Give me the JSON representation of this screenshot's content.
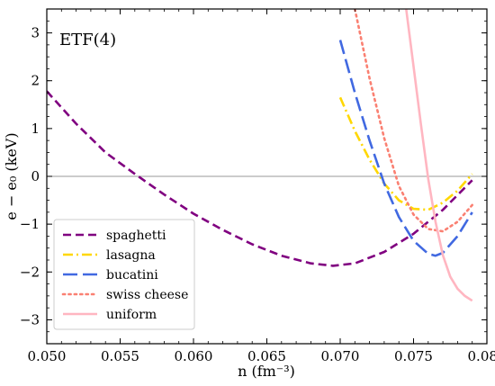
{
  "chart_data": {
    "type": "line",
    "title": "",
    "annotation": "ETF(4)",
    "xlabel": "n (fm⁻³)",
    "ylabel": "e − e₀ (keV)",
    "xlim": [
      0.05,
      0.08
    ],
    "ylim": [
      -3.5,
      3.5
    ],
    "xticks": [
      0.05,
      0.055,
      0.06,
      0.065,
      0.07,
      0.075,
      0.08
    ],
    "xtick_labels": [
      "0.050",
      "0.055",
      "0.060",
      "0.065",
      "0.070",
      "0.075",
      "0.080"
    ],
    "yticks": [
      -3,
      -2,
      -1,
      0,
      1,
      2,
      3
    ],
    "ytick_labels": [
      "−3",
      "−2",
      "−1",
      "0",
      "1",
      "2",
      "3"
    ],
    "reference_line_y": 0,
    "grid": false,
    "legend_position": "lower-left",
    "series": [
      {
        "name": "spaghetti",
        "color": "#800080",
        "style": "dashed",
        "x": [
          0.05,
          0.052,
          0.054,
          0.056,
          0.058,
          0.06,
          0.062,
          0.064,
          0.066,
          0.068,
          0.0695,
          0.071,
          0.073,
          0.075,
          0.077,
          0.079
        ],
        "y": [
          1.78,
          1.1,
          0.5,
          0.05,
          -0.38,
          -0.78,
          -1.12,
          -1.42,
          -1.66,
          -1.82,
          -1.87,
          -1.82,
          -1.58,
          -1.2,
          -0.7,
          -0.08
        ]
      },
      {
        "name": "lasagna",
        "color": "#FFD700",
        "style": "dashdot",
        "x": [
          0.07,
          0.071,
          0.072,
          0.073,
          0.074,
          0.075,
          0.076,
          0.077,
          0.078,
          0.079
        ],
        "y": [
          1.65,
          0.95,
          0.35,
          -0.15,
          -0.5,
          -0.68,
          -0.7,
          -0.55,
          -0.3,
          0.05
        ]
      },
      {
        "name": "bucatini",
        "color": "#4169E1",
        "style": "longdash",
        "x": [
          0.07,
          0.071,
          0.072,
          0.073,
          0.074,
          0.075,
          0.076,
          0.0765,
          0.077,
          0.078,
          0.079
        ],
        "y": [
          2.85,
          1.75,
          0.75,
          -0.15,
          -0.85,
          -1.35,
          -1.62,
          -1.66,
          -1.6,
          -1.25,
          -0.75
        ]
      },
      {
        "name": "swiss cheese",
        "color": "#FA8072",
        "style": "dotted",
        "x": [
          0.071,
          0.072,
          0.073,
          0.074,
          0.075,
          0.076,
          0.077,
          0.078,
          0.079
        ],
        "y": [
          3.5,
          2.05,
          0.8,
          -0.2,
          -0.8,
          -1.1,
          -1.15,
          -0.95,
          -0.6
        ]
      },
      {
        "name": "uniform",
        "color": "#FFB6C1",
        "style": "solid",
        "x": [
          0.0745,
          0.075,
          0.0755,
          0.076,
          0.0765,
          0.077,
          0.0775,
          0.078,
          0.0785,
          0.079
        ],
        "y": [
          3.5,
          2.3,
          1.1,
          -0.05,
          -0.95,
          -1.65,
          -2.1,
          -2.35,
          -2.5,
          -2.6
        ]
      }
    ]
  }
}
